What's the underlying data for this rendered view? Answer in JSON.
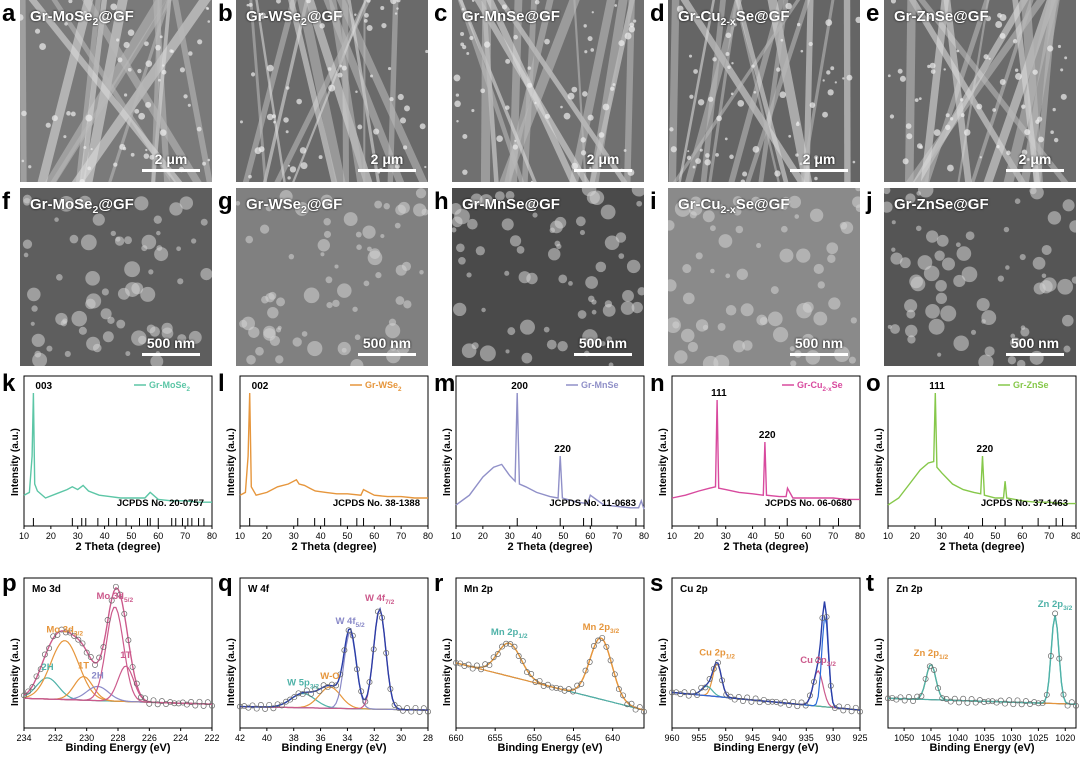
{
  "sem_row1": [
    {
      "label": "a",
      "title_parts": [
        "Gr-MoSe",
        "2",
        "@GF"
      ],
      "scale": "2 μm",
      "tint": "#7a7a7a"
    },
    {
      "label": "b",
      "title_parts": [
        "Gr-WSe",
        "2",
        "@GF"
      ],
      "scale": "2 μm",
      "tint": "#6a6a6a"
    },
    {
      "label": "c",
      "title_parts": [
        "Gr-MnSe@GF"
      ],
      "scale": "2 μm",
      "tint": "#707070"
    },
    {
      "label": "d",
      "title_parts": [
        "Gr-Cu",
        "2-x",
        "Se@GF"
      ],
      "scale": "2 μm",
      "tint": "#656565"
    },
    {
      "label": "e",
      "title_parts": [
        "Gr-ZnSe@GF"
      ],
      "scale": "2 μm",
      "tint": "#6b6b6b"
    }
  ],
  "sem_row2": [
    {
      "label": "f",
      "title_parts": [
        "Gr-MoSe",
        "2",
        "@GF"
      ],
      "scale": "500 nm",
      "tint": "#5e5e5e"
    },
    {
      "label": "g",
      "title_parts": [
        "Gr-WSe",
        "2",
        "@GF"
      ],
      "scale": "500 nm",
      "tint": "#808080"
    },
    {
      "label": "h",
      "title_parts": [
        "Gr-MnSe@GF"
      ],
      "scale": "500 nm",
      "tint": "#4a4a4a"
    },
    {
      "label": "i",
      "title_parts": [
        "Gr-Cu",
        "2-x",
        "Se@GF"
      ],
      "scale": "500 nm",
      "tint": "#8a8a8a"
    },
    {
      "label": "j",
      "title_parts": [
        "Gr-ZnSe@GF"
      ],
      "scale": "500 nm",
      "tint": "#555555"
    }
  ],
  "xrd_common": {
    "xlabel": "2 Theta (degree)",
    "ylabel": "Intensity (a.u.)",
    "xticks": [
      10,
      20,
      30,
      40,
      50,
      60,
      70,
      80
    ]
  },
  "xps_common": {
    "xlabel": "Binding Energy (eV)",
    "ylabel": "Intensity (a.u.)"
  },
  "chart_data": [
    {
      "panel": "k",
      "type": "line",
      "legend": "Gr-MoSe2",
      "legend_parts": [
        "Gr-MoSe",
        "2"
      ],
      "color": "#5cc6a6",
      "xlim": [
        10,
        80
      ],
      "jcpds": "JCPDS   No. 20-0757",
      "x": [
        10,
        12,
        13,
        13.5,
        14,
        15,
        18,
        22,
        26,
        28,
        30,
        32,
        34,
        38,
        42,
        46,
        50,
        55,
        57,
        60,
        65,
        70,
        75,
        80
      ],
      "y": [
        0.22,
        0.24,
        0.5,
        0.95,
        0.3,
        0.25,
        0.2,
        0.23,
        0.26,
        0.28,
        0.26,
        0.29,
        0.25,
        0.22,
        0.21,
        0.2,
        0.2,
        0.2,
        0.24,
        0.19,
        0.18,
        0.18,
        0.17,
        0.17
      ],
      "peaks": [
        {
          "label": "003",
          "x": 13.5
        }
      ],
      "ref_lines": [
        13.5,
        28,
        31.5,
        33,
        37.5,
        41.5,
        44.5,
        48,
        53,
        56,
        57,
        60,
        65,
        66.5,
        69,
        71,
        72.5,
        75,
        77
      ]
    },
    {
      "panel": "l",
      "type": "line",
      "legend": "Gr-WSe2",
      "legend_parts": [
        "Gr-WSe",
        "2"
      ],
      "color": "#e6963c",
      "xlim": [
        10,
        80
      ],
      "jcpds": "JCPDS   No. 38-1388",
      "x": [
        10,
        12,
        13,
        13.6,
        14.2,
        16,
        20,
        24,
        28,
        31,
        32,
        34,
        36,
        38,
        42,
        46,
        50,
        55,
        56,
        60,
        65,
        70,
        75,
        80
      ],
      "y": [
        0.22,
        0.24,
        0.5,
        0.95,
        0.28,
        0.22,
        0.24,
        0.28,
        0.3,
        0.33,
        0.3,
        0.29,
        0.27,
        0.25,
        0.24,
        0.23,
        0.23,
        0.22,
        0.26,
        0.22,
        0.21,
        0.21,
        0.2,
        0.2
      ],
      "peaks": [
        {
          "label": "002",
          "x": 13.6
        }
      ],
      "ref_lines": [
        13.6,
        31.5,
        37.8,
        41.5,
        47.5,
        53.5,
        56,
        66
      ]
    },
    {
      "panel": "m",
      "type": "line",
      "legend": "Gr-MnSe",
      "legend_parts": [
        "Gr-MnSe"
      ],
      "color": "#9090c8",
      "xlim": [
        10,
        80
      ],
      "jcpds": "JCPDS   No. 11-0683",
      "x": [
        10,
        15,
        20,
        24,
        27,
        30,
        32,
        32.8,
        33.6,
        36,
        40,
        45,
        48,
        48.8,
        49.6,
        55,
        59,
        60,
        65,
        70,
        75,
        78,
        79,
        80
      ],
      "y": [
        0.15,
        0.22,
        0.35,
        0.42,
        0.44,
        0.36,
        0.32,
        0.95,
        0.3,
        0.28,
        0.24,
        0.21,
        0.2,
        0.5,
        0.2,
        0.17,
        0.16,
        0.22,
        0.15,
        0.14,
        0.13,
        0.13,
        0.18,
        0.12
      ],
      "peaks": [
        {
          "label": "200",
          "x": 32.8
        },
        {
          "label": "220",
          "x": 48.8
        }
      ],
      "ref_lines": [
        32.8,
        48.8,
        57.5,
        60.5,
        77
      ]
    },
    {
      "panel": "n",
      "type": "line",
      "legend": "Gr-Cu2-xSe",
      "legend_parts": [
        "Gr-Cu",
        "2-x",
        "Se"
      ],
      "color": "#d84a9e",
      "xlim": [
        10,
        80
      ],
      "jcpds": "JCPDS   No. 06-0680",
      "x": [
        10,
        15,
        20,
        24,
        26.2,
        26.8,
        27.4,
        30,
        35,
        40,
        44,
        44.6,
        45.2,
        50,
        52.5,
        53,
        55,
        60,
        65,
        70,
        75,
        80
      ],
      "y": [
        0.2,
        0.22,
        0.25,
        0.27,
        0.28,
        0.9,
        0.27,
        0.26,
        0.24,
        0.23,
        0.22,
        0.6,
        0.22,
        0.21,
        0.21,
        0.27,
        0.2,
        0.2,
        0.2,
        0.2,
        0.19,
        0.19
      ],
      "peaks": [
        {
          "label": "111",
          "x": 26.8
        },
        {
          "label": "220",
          "x": 44.6
        }
      ],
      "ref_lines": [
        26.8,
        44.6,
        52.9,
        65,
        72
      ]
    },
    {
      "panel": "o",
      "type": "line",
      "legend": "Gr-ZnSe",
      "legend_parts": [
        "Gr-ZnSe"
      ],
      "color": "#86c84a",
      "xlim": [
        10,
        80
      ],
      "jcpds": "JCPDS   No. 37-1463",
      "x": [
        10,
        14,
        18,
        22,
        25,
        27,
        27.6,
        28.2,
        30,
        34,
        38,
        42,
        44.5,
        45.2,
        45.9,
        50,
        53,
        53.6,
        54.2,
        60,
        65,
        70,
        75,
        80
      ],
      "y": [
        0.15,
        0.2,
        0.3,
        0.4,
        0.45,
        0.46,
        0.95,
        0.42,
        0.38,
        0.3,
        0.26,
        0.24,
        0.23,
        0.5,
        0.22,
        0.2,
        0.2,
        0.32,
        0.2,
        0.18,
        0.17,
        0.17,
        0.16,
        0.16
      ],
      "peaks": [
        {
          "label": "111",
          "x": 27.6
        },
        {
          "label": "220",
          "x": 45.2
        }
      ],
      "ref_lines": [
        27.6,
        45.2,
        53.6,
        65.9,
        72.6,
        75
      ]
    },
    {
      "panel": "p",
      "type": "line",
      "core": "Mo 3d",
      "xlim": [
        234,
        222
      ],
      "xticks": [
        234,
        232,
        230,
        228,
        226,
        224,
        222
      ],
      "fit_color": "#cc5a8c",
      "background": [
        0.15,
        0.1
      ],
      "components": [
        {
          "label": "2H",
          "center": 232.5,
          "sigma": 0.7,
          "amp": 0.18,
          "color": "#4fb2a8"
        },
        {
          "label": "Mo 3d3/2",
          "label_parts": [
            "Mo 3d",
            "3/2"
          ],
          "center": 231.4,
          "sigma": 0.9,
          "amp": 0.5,
          "color": "#e6963c"
        },
        {
          "label": "1T",
          "center": 230.2,
          "sigma": 0.6,
          "amp": 0.2,
          "color": "#e6963c"
        },
        {
          "label": "2H",
          "center": 229.3,
          "sigma": 0.7,
          "amp": 0.12,
          "color": "#8a8ac8"
        },
        {
          "label": "Mo 3d5/2",
          "label_parts": [
            "Mo 3d",
            "5/2"
          ],
          "center": 228.2,
          "sigma": 0.55,
          "amp": 0.8,
          "color": "#cc5a8c"
        },
        {
          "label": "1T",
          "center": 227.5,
          "sigma": 0.5,
          "amp": 0.3,
          "color": "#cc5a8c"
        }
      ]
    },
    {
      "panel": "q",
      "type": "line",
      "core": "W 4f",
      "xlim": [
        42,
        28
      ],
      "xticks": [
        42,
        40,
        38,
        36,
        34,
        32,
        30,
        28
      ],
      "fit_color": "#2a3ea8",
      "background": [
        0.08,
        0.05
      ],
      "components": [
        {
          "label": "W 5p3/2",
          "label_parts": [
            "W 5p",
            "3/2"
          ],
          "center": 37.3,
          "sigma": 0.9,
          "amp": 0.12,
          "color": "#4fb2a8"
        },
        {
          "label": "W-O",
          "center": 35.3,
          "sigma": 0.8,
          "amp": 0.18,
          "color": "#e6963c"
        },
        {
          "label": "W 4f5/2",
          "label_parts": [
            "W 4f",
            "5/2"
          ],
          "center": 33.8,
          "sigma": 0.45,
          "amp": 0.65,
          "color": "#8a8ac8"
        },
        {
          "label": "W 4f7/2",
          "label_parts": [
            "W 4f",
            "7/2"
          ],
          "center": 31.6,
          "sigma": 0.45,
          "amp": 0.85,
          "color": "#cc5a8c"
        }
      ]
    },
    {
      "panel": "r",
      "type": "line",
      "core": "Mn 2p",
      "xlim": [
        660,
        636
      ],
      "xticks": [
        660,
        655,
        650,
        645,
        640
      ],
      "fit_color": "#e6963c",
      "background": [
        0.45,
        0.05
      ],
      "components": [
        {
          "label": "Mn 2p1/2",
          "label_parts": [
            "Mn 2p",
            "1/2"
          ],
          "center": 653.2,
          "sigma": 1.5,
          "amp": 0.28,
          "color": "#4fb2a8"
        },
        {
          "label": "Mn 2p3/2",
          "label_parts": [
            "Mn 2p",
            "3/2"
          ],
          "center": 641.5,
          "sigma": 1.4,
          "amp": 0.52,
          "color": "#e6963c"
        }
      ]
    },
    {
      "panel": "s",
      "type": "line",
      "core": "Cu 2p",
      "xlim": [
        960,
        925
      ],
      "xticks": [
        960,
        955,
        950,
        945,
        940,
        935,
        930,
        925
      ],
      "fit_color": "#2a3ea8",
      "background": [
        0.2,
        0.05
      ],
      "components": [
        {
          "label": "Cu 2p1/2",
          "label_parts": [
            "Cu 2p",
            "1/2"
          ],
          "center": 951.6,
          "sigma": 0.8,
          "amp": 0.28,
          "color": "#e6963c"
        },
        {
          "label": "",
          "center": 953.5,
          "sigma": 1.0,
          "amp": 0.08,
          "color": "#4fb2a8"
        },
        {
          "label": "Cu 2p3/2",
          "label_parts": [
            "Cu 2p",
            "3/2"
          ],
          "center": 932.8,
          "sigma": 0.9,
          "amp": 0.3,
          "color": "#cc5a8c"
        },
        {
          "label": "",
          "center": 931.5,
          "sigma": 0.6,
          "amp": 0.78,
          "color": "#2a6ad8"
        }
      ]
    },
    {
      "panel": "t",
      "type": "line",
      "core": "Zn 2p",
      "xlim": [
        1053,
        1018
      ],
      "xticks": [
        1050,
        1045,
        1040,
        1035,
        1030,
        1025,
        1020
      ],
      "fit_color": "#4fb2a8",
      "background": [
        0.15,
        0.1
      ],
      "components": [
        {
          "label": "Zn 2p1/2",
          "label_parts": [
            "Zn 2p",
            "1/2"
          ],
          "center": 1045.0,
          "sigma": 0.9,
          "amp": 0.3,
          "color": "#e6963c"
        },
        {
          "label": "Zn 2p3/2",
          "label_parts": [
            "Zn 2p",
            "3/2"
          ],
          "center": 1021.9,
          "sigma": 0.7,
          "amp": 0.75,
          "color": "#4fb2a8"
        }
      ]
    }
  ]
}
